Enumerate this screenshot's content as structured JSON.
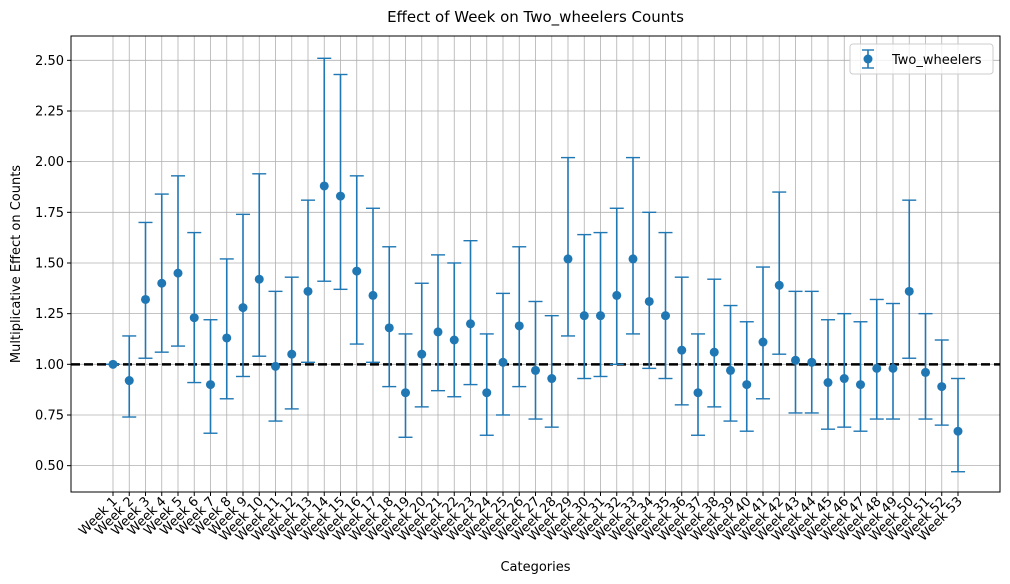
{
  "chart_data": {
    "type": "scatter",
    "title": "Effect of Week on Two_wheelers Counts",
    "xlabel": "Categories",
    "ylabel": "Multiplicative Effect on Counts",
    "ylim": [
      0.37,
      2.62
    ],
    "yticks": [
      0.5,
      0.75,
      1.0,
      1.25,
      1.5,
      1.75,
      2.0,
      2.25,
      2.5
    ],
    "ytick_labels": [
      "0.50",
      "0.75",
      "1.00",
      "1.25",
      "1.50",
      "1.75",
      "2.00",
      "2.25",
      "2.50"
    ],
    "grid": true,
    "legend_position": "top-right",
    "reference_line": 1.0,
    "colors": {
      "series": "#1f77b4",
      "reference": "#000000",
      "grid": "#b0b0b0"
    },
    "categories": [
      "Week 1",
      "Week 2",
      "Week 3",
      "Week 4",
      "Week 5",
      "Week 6",
      "Week 7",
      "Week 8",
      "Week 9",
      "Week 10",
      "Week 11",
      "Week 12",
      "Week 13",
      "Week 14",
      "Week 15",
      "Week 16",
      "Week 17",
      "Week 18",
      "Week 19",
      "Week 20",
      "Week 21",
      "Week 22",
      "Week 23",
      "Week 24",
      "Week 25",
      "Week 26",
      "Week 27",
      "Week 28",
      "Week 29",
      "Week 30",
      "Week 31",
      "Week 32",
      "Week 33",
      "Week 34",
      "Week 35",
      "Week 36",
      "Week 37",
      "Week 38",
      "Week 39",
      "Week 40",
      "Week 41",
      "Week 42",
      "Week 43",
      "Week 44",
      "Week 45",
      "Week 46",
      "Week 47",
      "Week 48",
      "Week 49",
      "Week 50",
      "Week 51",
      "Week 52",
      "Week 53"
    ],
    "series": [
      {
        "name": "Two_wheelers",
        "values": [
          1.0,
          0.92,
          1.32,
          1.4,
          1.45,
          1.23,
          0.9,
          1.13,
          1.28,
          1.42,
          0.99,
          1.05,
          1.36,
          1.88,
          1.83,
          1.46,
          1.34,
          1.18,
          0.86,
          1.05,
          1.16,
          1.12,
          1.2,
          0.86,
          1.01,
          1.19,
          0.97,
          0.93,
          1.52,
          1.24,
          1.24,
          1.34,
          1.52,
          1.31,
          1.24,
          1.07,
          0.86,
          1.06,
          0.97,
          0.9,
          1.11,
          1.39,
          1.02,
          1.01,
          0.91,
          0.93,
          0.9,
          0.98,
          0.98,
          1.36,
          0.96,
          0.89,
          0.67
        ],
        "lower": [
          1.0,
          0.74,
          1.03,
          1.06,
          1.09,
          0.91,
          0.66,
          0.83,
          0.94,
          1.04,
          0.72,
          0.78,
          1.01,
          1.41,
          1.37,
          1.1,
          1.01,
          0.89,
          0.64,
          0.79,
          0.87,
          0.84,
          0.9,
          0.65,
          0.75,
          0.89,
          0.73,
          0.69,
          1.14,
          0.93,
          0.94,
          1.0,
          1.15,
          0.98,
          0.93,
          0.8,
          0.65,
          0.79,
          0.72,
          0.67,
          0.83,
          1.05,
          0.76,
          0.76,
          0.68,
          0.69,
          0.67,
          0.73,
          0.73,
          1.03,
          0.73,
          0.7,
          0.47
        ],
        "upper": [
          1.0,
          1.14,
          1.7,
          1.84,
          1.93,
          1.65,
          1.22,
          1.52,
          1.74,
          1.94,
          1.36,
          1.43,
          1.81,
          2.51,
          2.43,
          1.93,
          1.77,
          1.58,
          1.15,
          1.4,
          1.54,
          1.5,
          1.61,
          1.15,
          1.35,
          1.58,
          1.31,
          1.24,
          2.02,
          1.64,
          1.65,
          1.77,
          2.02,
          1.75,
          1.65,
          1.43,
          1.15,
          1.42,
          1.29,
          1.21,
          1.48,
          1.85,
          1.36,
          1.36,
          1.22,
          1.25,
          1.21,
          1.32,
          1.3,
          1.81,
          1.25,
          1.12,
          0.93
        ]
      }
    ]
  }
}
